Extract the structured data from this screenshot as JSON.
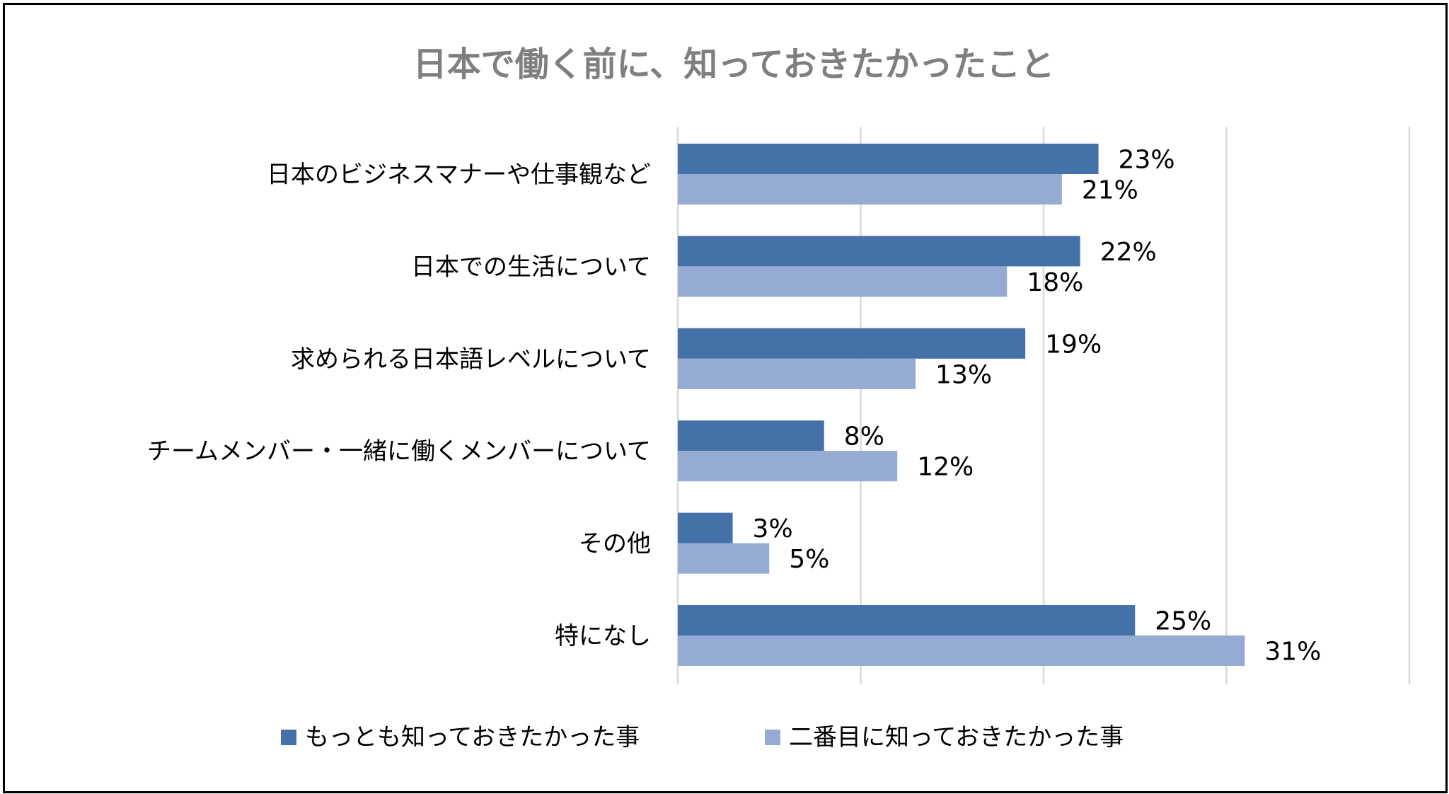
{
  "chart_data": {
    "type": "bar",
    "orientation": "horizontal",
    "title": "日本で働く前に、知っておきたかったこと",
    "categories": [
      "日本のビジネスマナーや仕事観など",
      "日本での生活について",
      "求められる日本語レベルについて",
      "チームメンバー・一緒に働くメンバーについて",
      "その他",
      "特になし"
    ],
    "series": [
      {
        "name": "もっとも知っておきたかった事",
        "color": "#4472a8",
        "values": [
          23,
          22,
          19,
          8,
          3,
          25
        ],
        "labels": [
          "23%",
          "22%",
          "19%",
          "8%",
          "3%",
          "25%"
        ]
      },
      {
        "name": "二番目に知っておきたかった事",
        "color": "#95abd3",
        "values": [
          21,
          18,
          13,
          12,
          5,
          31
        ],
        "labels": [
          "21%",
          "18%",
          "13%",
          "12%",
          "5%",
          "31%"
        ]
      }
    ],
    "xlim": [
      0,
      40
    ],
    "xticks": [
      0,
      10,
      20,
      30,
      40
    ],
    "xlabel": "",
    "ylabel": "",
    "grid": true,
    "legend": "bottom"
  }
}
